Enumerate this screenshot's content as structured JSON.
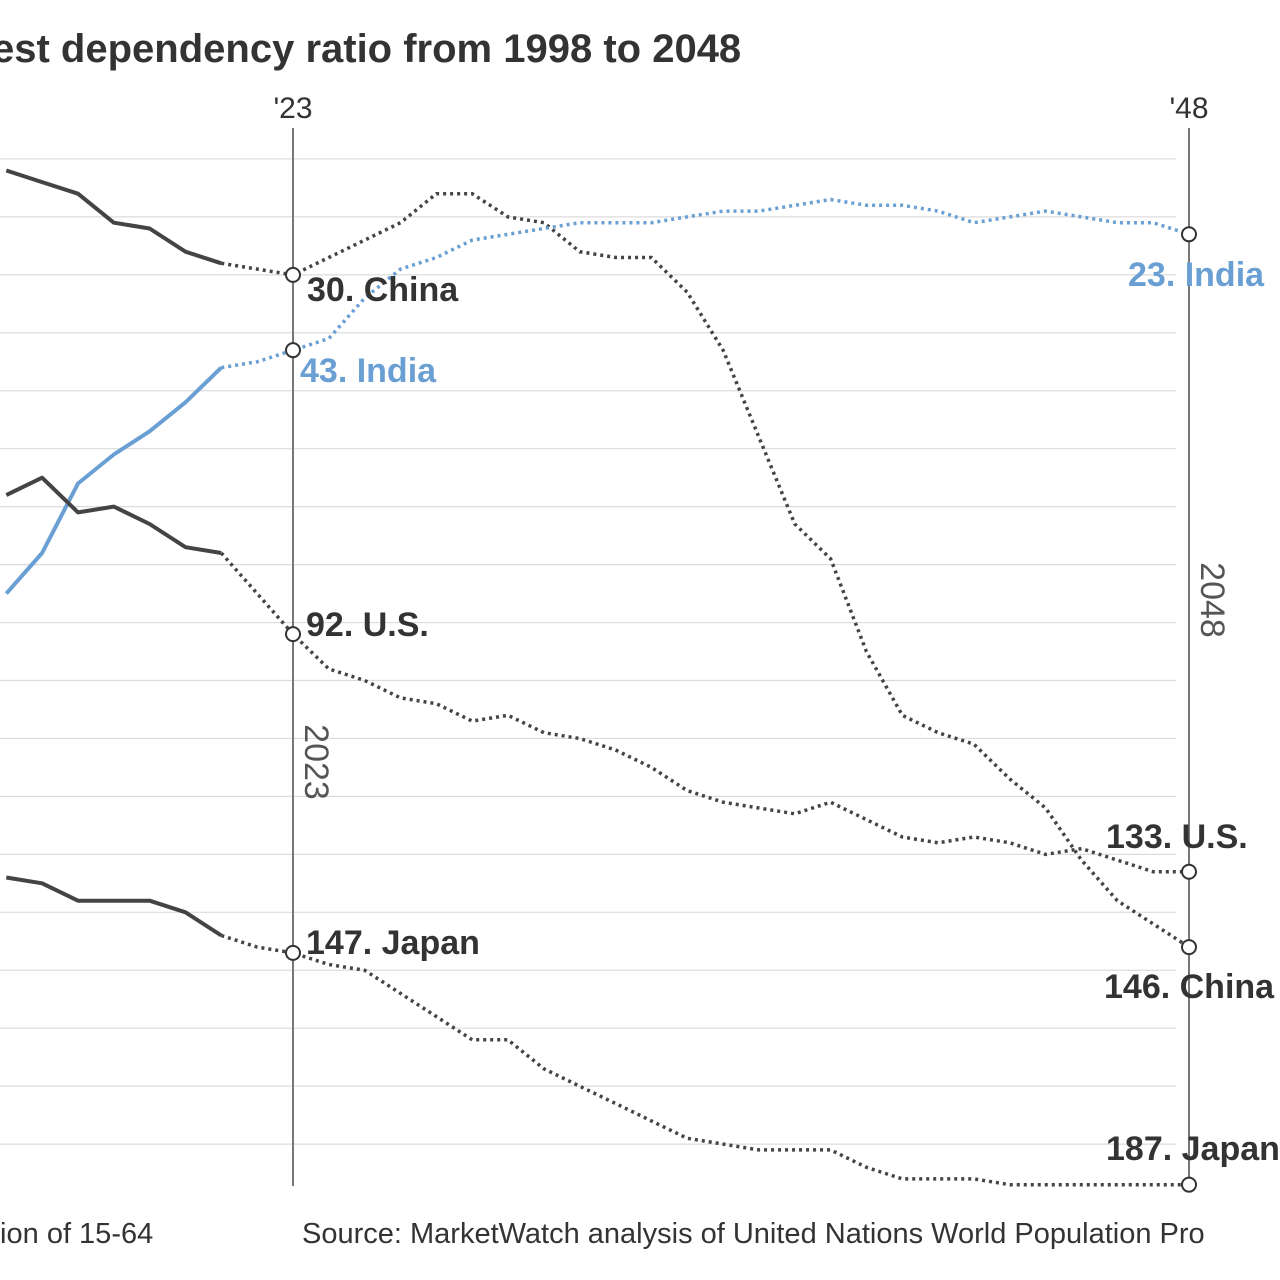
{
  "chart_data": {
    "type": "line",
    "title": "est dependency ratio from 1998 to 2048",
    "footer_left": "tion of 15-64",
    "source": "Source: MarketWatch analysis of United Nations World Population Pro",
    "xlim": [
      2014.8,
      2050.5
    ],
    "ylim": [
      0,
      204
    ],
    "y_inverted": true,
    "grid": true,
    "gridlines_rank": [
      10,
      20,
      30,
      40,
      50,
      60,
      70,
      80,
      90,
      100,
      110,
      120,
      130,
      140,
      150,
      160,
      170,
      180
    ],
    "projection_start": 2021,
    "markers": [
      {
        "year": 2023,
        "tick_label": "'23",
        "vertical_label": "2023"
      },
      {
        "year": 2048,
        "tick_label": "'48",
        "vertical_label": "2048"
      }
    ],
    "x": [
      2015,
      2016,
      2017,
      2018,
      2019,
      2020,
      2021,
      2022,
      2023,
      2024,
      2025,
      2026,
      2027,
      2028,
      2029,
      2030,
      2031,
      2032,
      2033,
      2034,
      2035,
      2036,
      2037,
      2038,
      2039,
      2040,
      2041,
      2042,
      2043,
      2044,
      2045,
      2046,
      2047,
      2048
    ],
    "series": [
      {
        "name": "China",
        "color": "#444444",
        "values": [
          12,
          14,
          16,
          21,
          22,
          26,
          28,
          29,
          30,
          27,
          24,
          21,
          16,
          16,
          20,
          21,
          26,
          27,
          27,
          33,
          43,
          58,
          73,
          79,
          95,
          106,
          109,
          111,
          117,
          122,
          131,
          138,
          142,
          146
        ],
        "labels": [
          "30. China",
          "146. China"
        ]
      },
      {
        "name": "India",
        "color": "#6a9fd4",
        "values": [
          85,
          78,
          66,
          61,
          57,
          52,
          46,
          45,
          43,
          41,
          34,
          29,
          27,
          24,
          23,
          22,
          21,
          21,
          21,
          20,
          19,
          19,
          18,
          17,
          18,
          18,
          19,
          21,
          20,
          19,
          20,
          21,
          21,
          23
        ],
        "labels": [
          "43. India",
          "23. India"
        ]
      },
      {
        "name": "U.S.",
        "color": "#444444",
        "values": [
          68,
          65,
          71,
          70,
          73,
          77,
          78,
          85,
          92,
          98,
          100,
          103,
          104,
          107,
          106,
          109,
          110,
          112,
          115,
          119,
          121,
          122,
          123,
          121,
          124,
          127,
          128,
          127,
          128,
          130,
          129,
          131,
          133,
          133
        ],
        "labels": [
          "92. U.S.",
          "133. U.S."
        ]
      },
      {
        "name": "Japan",
        "color": "#444444",
        "values": [
          134,
          135,
          138,
          138,
          138,
          140,
          144,
          146,
          147,
          149,
          150,
          154,
          158,
          162,
          162,
          167,
          170,
          173,
          176,
          179,
          180,
          181,
          181,
          181,
          184,
          186,
          186,
          186,
          187,
          187,
          187,
          187,
          187,
          187
        ],
        "labels": [
          "147. Japan",
          "187. Japan"
        ]
      }
    ]
  }
}
